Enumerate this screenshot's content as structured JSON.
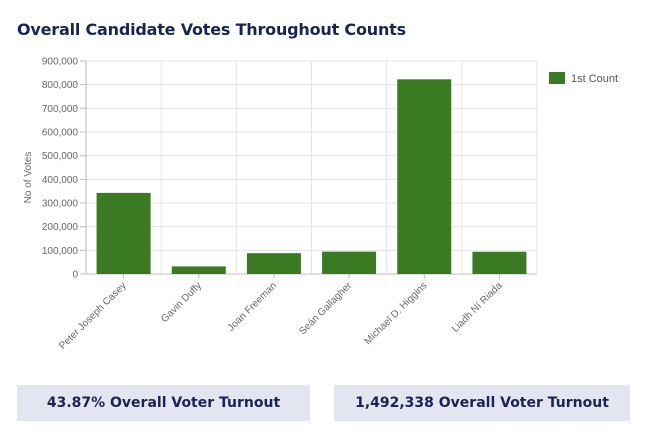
{
  "title": "Overall Candidate Votes Throughout Counts",
  "stats": [
    {
      "label": "43.87% Overall Voter Turnout"
    },
    {
      "label": "1,492,338 Overall Voter Turnout"
    }
  ],
  "chart_data": {
    "type": "bar",
    "categories": [
      "Peter Joseph Casey",
      "Gavin Duffy",
      "Joan Freeman",
      "Seán Gallagher",
      "Michael D. Higgins",
      "Liadh Ní Riada"
    ],
    "series": [
      {
        "name": "1st Count",
        "values": [
          342727,
          32198,
          87908,
          94514,
          822566,
          93987
        ]
      }
    ],
    "xlabel": "",
    "ylabel": "No of Votes",
    "ylim": [
      0,
      900000
    ],
    "yticks": [
      0,
      100000,
      200000,
      300000,
      400000,
      500000,
      600000,
      700000,
      800000,
      900000
    ],
    "ytick_labels": [
      "0",
      "100,000",
      "200,000",
      "300,000",
      "400,000",
      "500,000",
      "600,000",
      "700,000",
      "800,000",
      "900,000"
    ],
    "grid": true,
    "legend": "top-right",
    "colors": {
      "bar": "#3a7a22",
      "grid": "#e4e4e4",
      "axis": "#bdbdbd",
      "tick_text": "#666666"
    }
  }
}
